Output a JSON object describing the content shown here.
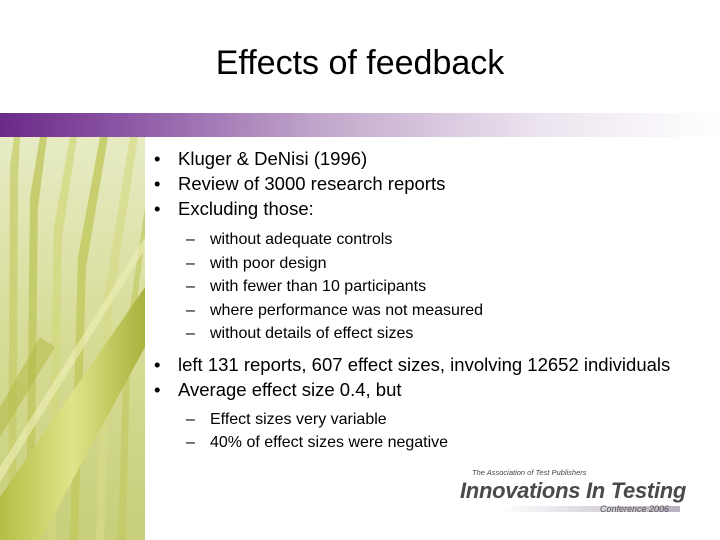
{
  "slide": {
    "title": "Effects of feedback",
    "bullets": [
      {
        "marker": "•",
        "text": "Kluger & DeNisi (1996)"
      },
      {
        "marker": "•",
        "text": "Review of 3000 research reports"
      },
      {
        "marker": "•",
        "text": "Excluding those:"
      }
    ],
    "excluding_sub": [
      {
        "marker": "–",
        "text": "without adequate controls"
      },
      {
        "marker": "–",
        "text": "with poor design"
      },
      {
        "marker": "–",
        "text": "with fewer than 10 participants"
      },
      {
        "marker": "–",
        "text": "where performance was not measured"
      },
      {
        "marker": "–",
        "text": "without details of effect sizes"
      }
    ],
    "bullets2": [
      {
        "marker": "•",
        "text": "left 131 reports, 607 effect sizes, involving 12652 individuals"
      },
      {
        "marker": "•",
        "text": "Average effect size 0.4, but"
      }
    ],
    "average_sub": [
      {
        "marker": "–",
        "text": "Effect sizes very variable"
      },
      {
        "marker": "–",
        "text": "40% of effect sizes were negative"
      }
    ]
  },
  "logo": {
    "org": "The Association of Test Publishers",
    "name": "Innovations In Testing",
    "conference": "Conference 2006"
  },
  "colors": {
    "accent_bar_start": "#6a2a88",
    "leaf_green": "#b9c25a"
  }
}
